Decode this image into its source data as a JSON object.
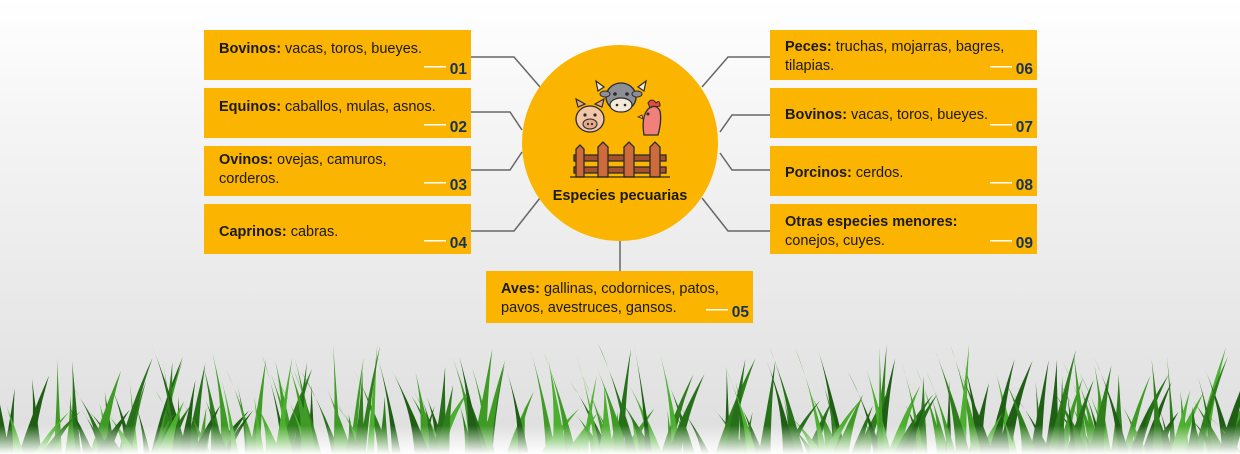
{
  "center": {
    "label": "Especies pecuarias",
    "icon": "farm-animals-fence-icon"
  },
  "items": [
    {
      "title": "Bovinos:",
      "text": " vacas, toros, bueyes.",
      "number": "01"
    },
    {
      "title": "Equinos:",
      "text": " caballos, mulas, asnos.",
      "number": "02"
    },
    {
      "title": "Ovinos:",
      "text": " ovejas, camuros, corderos.",
      "number": "03"
    },
    {
      "title": "Caprinos:",
      "text": " cabras.",
      "number": "04"
    },
    {
      "title": "Aves:",
      "text": " gallinas, codornices, patos, pavos, avestruces, gansos.",
      "number": "05"
    },
    {
      "title": "Peces:",
      "text": " truchas, mojarras, bagres, tilapias.",
      "number": "06"
    },
    {
      "title": "Bovinos:",
      "text": " vacas, toros, bueyes.",
      "number": "07"
    },
    {
      "title": "Porcinos:",
      "text": " cerdos.",
      "number": "08"
    },
    {
      "title": "Otras especies menores:",
      "text": " conejos, cuyes.",
      "number": "09"
    }
  ],
  "colors": {
    "accent": "#fbb400",
    "number": "#16325a",
    "connector": "#666666",
    "grass": "#2f7d1c"
  }
}
